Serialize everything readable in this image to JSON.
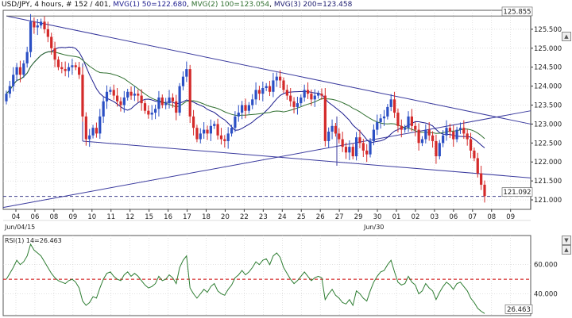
{
  "header": {
    "symbol": "USD/JPY",
    "rest": ", 4 hours, # 152 / 401, ",
    "mvg1": "MVG(1) 50=122.680",
    "sep1": ", ",
    "mvg2": "MVG(2) 100=123.054",
    "sep2": ", ",
    "mvg3": "MVG(3) 200=123.458"
  },
  "colors": {
    "candle_up": "#2b4fc4",
    "candle_down": "#d42a2a",
    "mvg1": "#1c1c8e",
    "mvg2": "#2f6f2f",
    "mvg3": "#1a1a6e",
    "trendline": "#3a3a9e",
    "rsi_line": "#2e7d32",
    "rsi_level": "#cc0000",
    "price_level": "#3d3d8a",
    "grid": "#cfcfcf"
  },
  "rsi_label": "RSI(1) 14=26.463",
  "date_sub_labels": [
    "Jun/04/15",
    "Jun/30"
  ],
  "chart_data": [
    {
      "type": "candlestick",
      "title": "USD/JPY, 4 hours",
      "ylim": [
        120.75,
        126.0
      ],
      "y_ticks": [
        "125.500",
        "125.000",
        "124.500",
        "124.000",
        "123.500",
        "123.000",
        "122.500",
        "122.000",
        "121.500",
        "121.000"
      ],
      "x_ticks": [
        "04",
        "06",
        "08",
        "09",
        "10",
        "11",
        "12",
        "15",
        "16",
        "17",
        "18",
        "20",
        "22",
        "23",
        "24",
        "25",
        "26",
        "27",
        "29",
        "30",
        "01",
        "02",
        "03",
        "06",
        "07",
        "08",
        "09"
      ],
      "price_markers": [
        "125.855",
        "121.092"
      ],
      "grid": true,
      "closes": [
        123.8,
        124.0,
        124.3,
        124.5,
        124.3,
        124.6,
        124.9,
        125.7,
        125.55,
        125.6,
        125.7,
        125.5,
        125.3,
        125.0,
        124.7,
        124.5,
        124.45,
        124.4,
        124.5,
        124.55,
        124.5,
        124.3,
        123.2,
        122.6,
        122.7,
        122.9,
        122.75,
        123.2,
        123.6,
        123.85,
        123.9,
        123.75,
        123.6,
        123.5,
        123.7,
        123.85,
        123.75,
        123.8,
        123.75,
        123.55,
        123.35,
        123.25,
        123.3,
        123.4,
        123.7,
        123.5,
        123.55,
        123.7,
        123.6,
        123.3,
        124.0,
        124.25,
        124.45,
        123.2,
        122.9,
        122.6,
        122.75,
        122.85,
        122.75,
        122.95,
        123.0,
        122.7,
        122.6,
        122.55,
        122.75,
        122.9,
        123.2,
        123.3,
        123.5,
        123.35,
        123.5,
        123.65,
        123.9,
        123.8,
        123.95,
        124.0,
        123.85,
        124.15,
        124.25,
        124.15,
        123.9,
        123.75,
        123.6,
        123.45,
        123.55,
        123.7,
        123.9,
        123.8,
        123.65,
        123.75,
        123.8,
        123.75,
        122.55,
        122.8,
        122.95,
        122.75,
        122.6,
        122.4,
        122.25,
        122.4,
        122.15,
        122.65,
        122.5,
        122.3,
        122.2,
        122.55,
        122.85,
        123.05,
        123.15,
        123.2,
        123.45,
        123.65,
        123.3,
        122.95,
        122.85,
        122.9,
        123.2,
        122.95,
        122.85,
        122.5,
        122.6,
        122.85,
        122.7,
        122.55,
        122.15,
        122.5,
        122.7,
        122.9,
        122.8,
        122.6,
        122.85,
        122.9,
        122.75,
        122.6,
        122.3,
        122.1,
        121.7,
        121.4,
        121.1
      ],
      "moving_averages": [
        {
          "name": "MVG(1) 50",
          "value": 122.68
        },
        {
          "name": "MVG(2) 100",
          "value": 123.054
        },
        {
          "name": "MVG(3) 200",
          "value": 123.458
        }
      ]
    },
    {
      "type": "line",
      "title": "RSI(1) 14",
      "ylim": [
        25,
        80
      ],
      "y_ticks": [
        "60.000",
        "40.000"
      ],
      "level": 50,
      "marker": "26.463",
      "values": [
        50,
        54,
        58,
        63,
        60,
        62,
        66,
        74,
        70,
        68,
        66,
        62,
        58,
        54,
        51,
        49,
        48,
        47,
        49,
        50,
        48,
        44,
        35,
        32,
        34,
        38,
        37,
        44,
        50,
        54,
        55,
        52,
        50,
        49,
        53,
        55,
        52,
        54,
        52,
        49,
        46,
        44,
        45,
        47,
        52,
        49,
        50,
        53,
        51,
        47,
        58,
        63,
        66,
        44,
        40,
        37,
        40,
        43,
        41,
        45,
        47,
        42,
        40,
        39,
        43,
        46,
        51,
        53,
        56,
        53,
        55,
        58,
        62,
        60,
        63,
        64,
        60,
        66,
        68,
        65,
        58,
        54,
        50,
        47,
        49,
        52,
        55,
        52,
        49,
        51,
        52,
        51,
        36,
        40,
        43,
        39,
        37,
        34,
        33,
        36,
        32,
        42,
        40,
        37,
        35,
        42,
        48,
        52,
        55,
        56,
        60,
        63,
        55,
        48,
        46,
        47,
        52,
        48,
        46,
        40,
        42,
        47,
        44,
        42,
        36,
        41,
        45,
        48,
        46,
        43,
        47,
        48,
        45,
        42,
        37,
        34,
        30,
        28,
        26.463
      ]
    }
  ]
}
